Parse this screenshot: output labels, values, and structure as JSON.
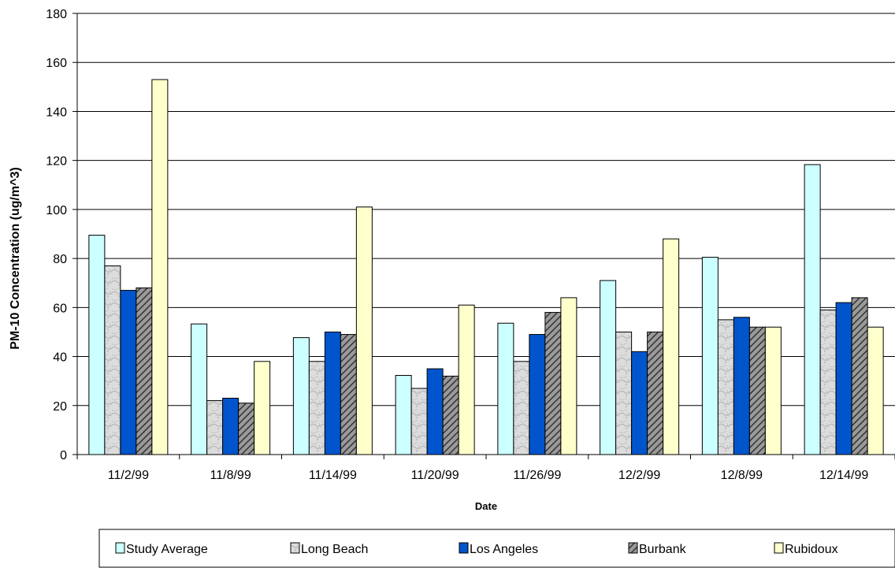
{
  "chart_data": {
    "type": "bar",
    "xlabel": "Date",
    "ylabel": "PM-10  Concentration (ug/m^3)",
    "ylim": [
      0,
      180
    ],
    "yticks": [
      0,
      20,
      40,
      60,
      80,
      100,
      120,
      140,
      160,
      180
    ],
    "grid": "horizontal",
    "legend_position": "bottom",
    "categories": [
      "11/2/99",
      "11/8/99",
      "11/14/99",
      "11/20/99",
      "11/26/99",
      "12/2/99",
      "12/8/99",
      "12/14/99"
    ],
    "series": [
      {
        "name": "Study Average",
        "color": "#ccffff",
        "pattern": "solid",
        "values": [
          89.5,
          53.3,
          47.7,
          32.3,
          53.6,
          71,
          80.5,
          118.3
        ]
      },
      {
        "name": "Long Beach",
        "color": "#d9d9d9",
        "pattern": "texture",
        "values": [
          77,
          22,
          38,
          27,
          38,
          50,
          55,
          59
        ]
      },
      {
        "name": "Los Angeles",
        "color": "#0055cc",
        "pattern": "solid",
        "values": [
          67,
          23,
          50,
          35,
          49,
          42,
          56,
          62
        ]
      },
      {
        "name": "Burbank",
        "color": "#777777",
        "pattern": "hatch",
        "values": [
          68,
          21,
          49,
          32,
          58,
          50,
          52,
          64
        ]
      },
      {
        "name": "Rubidoux",
        "color": "#ffffcc",
        "pattern": "solid",
        "values": [
          153,
          38,
          101,
          61,
          64,
          88,
          52,
          52
        ]
      }
    ]
  }
}
